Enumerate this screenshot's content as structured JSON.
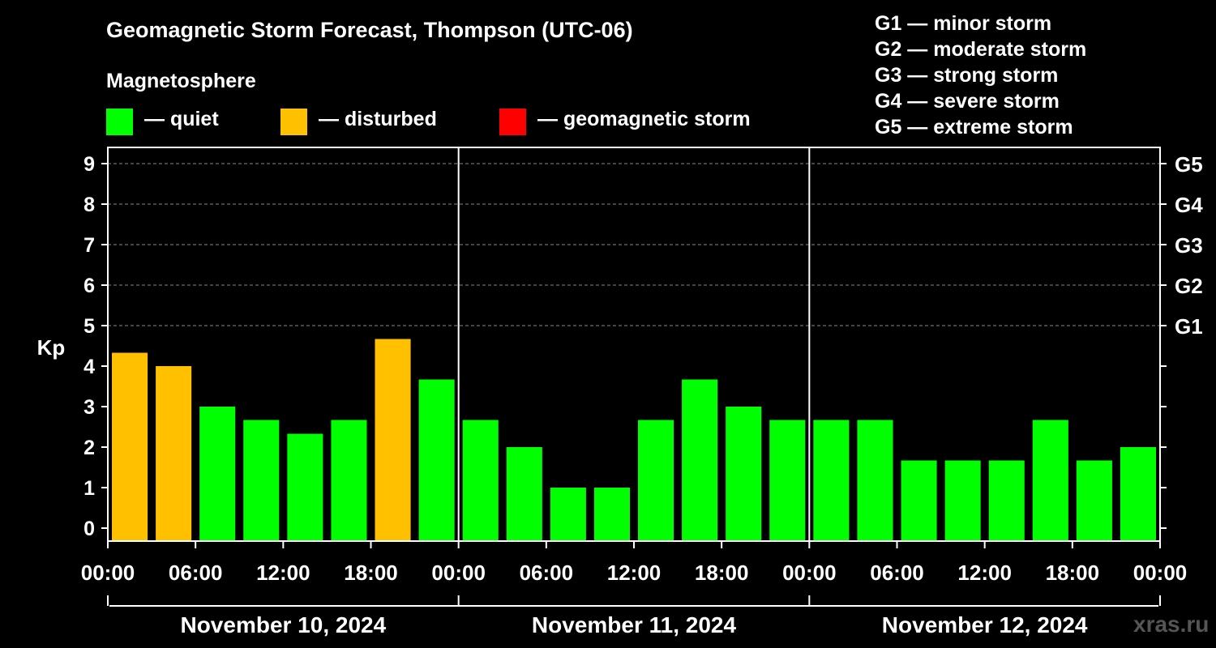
{
  "title": "Geomagnetic Storm Forecast, Thompson (UTC-06)",
  "legend": {
    "heading": "Magnetosphere",
    "items": [
      {
        "label": "— quiet",
        "color": "#00ff00"
      },
      {
        "label": "— disturbed",
        "color": "#ffc000"
      },
      {
        "label": "— geomagnetic storm",
        "color": "#ff0000"
      }
    ]
  },
  "g_scale": [
    "G1 — minor storm",
    "G2 — moderate storm",
    "G3 — strong storm",
    "G4 — severe storm",
    "G5 — extreme storm"
  ],
  "watermark": "xras.ru",
  "chart_data": {
    "type": "bar",
    "title": "Geomagnetic Storm Forecast, Thompson (UTC-06)",
    "ylabel": "Kp",
    "xlabel": "",
    "ylim": [
      0,
      9
    ],
    "yticks": [
      "0",
      "1",
      "2",
      "3",
      "4",
      "5",
      "6",
      "7",
      "8",
      "9"
    ],
    "right_ticks": [
      {
        "value": 5,
        "label": "G1"
      },
      {
        "value": 6,
        "label": "G2"
      },
      {
        "value": 7,
        "label": "G3"
      },
      {
        "value": 8,
        "label": "G4"
      },
      {
        "value": 9,
        "label": "G5"
      }
    ],
    "x_tick_labels": [
      "00:00",
      "06:00",
      "12:00",
      "18:00",
      "00:00",
      "06:00",
      "12:00",
      "18:00",
      "00:00",
      "06:00",
      "12:00",
      "18:00",
      "00:00"
    ],
    "days": [
      "November 10, 2024",
      "November 11, 2024",
      "November 12, 2024"
    ],
    "bar_interval_hours": 3,
    "values": [
      4.33,
      4.0,
      3.0,
      2.67,
      2.33,
      2.67,
      4.67,
      3.67,
      2.67,
      2.0,
      1.0,
      1.0,
      2.67,
      3.67,
      3.0,
      2.67,
      2.67,
      2.67,
      1.67,
      1.67,
      1.67,
      2.67,
      1.67,
      2.0
    ],
    "levels": [
      "disturbed",
      "disturbed",
      "quiet",
      "quiet",
      "quiet",
      "quiet",
      "disturbed",
      "quiet",
      "quiet",
      "quiet",
      "quiet",
      "quiet",
      "quiet",
      "quiet",
      "quiet",
      "quiet",
      "quiet",
      "quiet",
      "quiet",
      "quiet",
      "quiet",
      "quiet",
      "quiet",
      "quiet"
    ],
    "level_colors": {
      "quiet": "#00ff00",
      "disturbed": "#ffc000",
      "storm": "#ff0000"
    }
  }
}
